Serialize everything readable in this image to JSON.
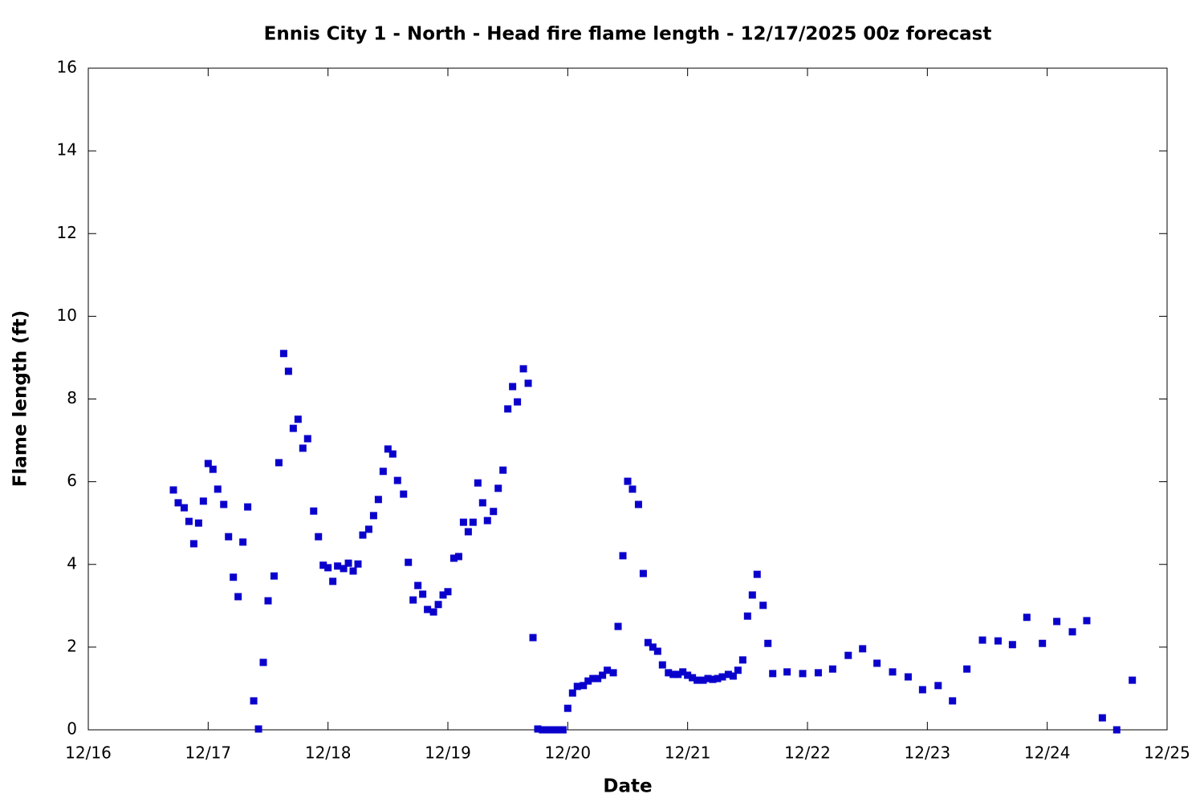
{
  "chart_data": {
    "type": "scatter",
    "title": "Ennis City 1 - North - Head fire flame length - 12/17/2025 00z forecast",
    "x_label": "Date",
    "y_label": "Flame length (ft)",
    "color": "#0a00cc",
    "xlim": [
      0,
      9
    ],
    "ylim": [
      0,
      16
    ],
    "xticks": [
      {
        "value": 0,
        "label": "12/16"
      },
      {
        "value": 1,
        "label": "12/17"
      },
      {
        "value": 2,
        "label": "12/18"
      },
      {
        "value": 3,
        "label": "12/19"
      },
      {
        "value": 4,
        "label": "12/20"
      },
      {
        "value": 5,
        "label": "12/21"
      },
      {
        "value": 6,
        "label": "12/22"
      },
      {
        "value": 7,
        "label": "12/23"
      },
      {
        "value": 8,
        "label": "12/24"
      },
      {
        "value": 9,
        "label": "12/25"
      }
    ],
    "yticks": [
      0,
      2,
      4,
      6,
      8,
      10,
      12,
      14,
      16
    ],
    "x": [
      0.71,
      0.75,
      0.8,
      0.84,
      0.88,
      0.92,
      0.96,
      1.0,
      1.04,
      1.08,
      1.13,
      1.17,
      1.21,
      1.25,
      1.29,
      1.33,
      1.38,
      1.42,
      1.46,
      1.5,
      1.55,
      1.59,
      1.63,
      1.67,
      1.71,
      1.75,
      1.79,
      1.83,
      1.88,
      1.92,
      1.96,
      2.0,
      2.04,
      2.08,
      2.13,
      2.17,
      2.21,
      2.25,
      2.29,
      2.34,
      2.38,
      2.42,
      2.46,
      2.5,
      2.54,
      2.58,
      2.63,
      2.67,
      2.71,
      2.75,
      2.79,
      2.83,
      2.88,
      2.92,
      2.96,
      3.0,
      3.05,
      3.09,
      3.13,
      3.17,
      3.21,
      3.25,
      3.29,
      3.33,
      3.38,
      3.42,
      3.46,
      3.5,
      3.54,
      3.58,
      3.63,
      3.67,
      3.71,
      3.75,
      3.79,
      3.84,
      3.88,
      3.92,
      3.96,
      4.0,
      4.04,
      4.08,
      4.13,
      4.17,
      4.21,
      4.25,
      4.29,
      4.33,
      4.38,
      4.42,
      4.46,
      4.5,
      4.54,
      4.59,
      4.63,
      4.67,
      4.71,
      4.75,
      4.79,
      4.84,
      4.88,
      4.92,
      4.96,
      5.0,
      5.04,
      5.08,
      5.13,
      5.17,
      5.21,
      5.25,
      5.29,
      5.34,
      5.38,
      5.42,
      5.46,
      5.5,
      5.54,
      5.58,
      5.63,
      5.67,
      5.71,
      5.83,
      5.96,
      6.09,
      6.21,
      6.34,
      6.46,
      6.58,
      6.71,
      6.84,
      6.96,
      7.09,
      7.21,
      7.33,
      7.46,
      7.59,
      7.71,
      7.83,
      7.96,
      8.08,
      8.21,
      8.33,
      8.46,
      8.58,
      8.71
    ],
    "values": [
      5.8,
      5.49,
      5.37,
      5.04,
      4.5,
      5.0,
      5.53,
      6.44,
      6.3,
      5.82,
      5.45,
      4.67,
      3.69,
      3.22,
      4.54,
      5.39,
      0.7,
      0.02,
      1.63,
      3.12,
      3.72,
      6.46,
      9.1,
      8.67,
      7.29,
      7.51,
      6.81,
      7.04,
      5.29,
      4.67,
      3.98,
      3.92,
      3.59,
      3.96,
      3.9,
      4.03,
      3.84,
      4.01,
      4.71,
      4.85,
      5.18,
      5.57,
      6.25,
      6.79,
      6.67,
      6.03,
      5.7,
      4.05,
      3.14,
      3.49,
      3.28,
      2.91,
      2.85,
      3.03,
      3.26,
      3.34,
      4.15,
      4.19,
      5.02,
      4.79,
      5.02,
      5.97,
      5.49,
      5.06,
      5.28,
      5.84,
      6.28,
      7.76,
      8.3,
      7.93,
      8.73,
      8.38,
      2.23,
      0.02,
      0,
      0,
      0,
      0,
      0,
      0.52,
      0.89,
      1.05,
      1.07,
      1.18,
      1.24,
      1.24,
      1.32,
      1.44,
      1.38,
      2.5,
      4.21,
      6.01,
      5.82,
      5.45,
      3.78,
      2.11,
      2.0,
      1.9,
      1.57,
      1.38,
      1.34,
      1.34,
      1.4,
      1.32,
      1.26,
      1.2,
      1.2,
      1.24,
      1.22,
      1.24,
      1.28,
      1.34,
      1.3,
      1.44,
      1.69,
      2.75,
      3.26,
      3.76,
      3.01,
      2.09,
      1.36,
      1.4,
      1.36,
      1.38,
      1.47,
      1.8,
      1.96,
      1.61,
      1.4,
      1.28,
      0.97,
      1.07,
      0.7,
      1.47,
      2.17,
      2.15,
      2.06,
      2.72,
      2.09,
      2.62,
      2.37,
      2.64,
      0.29,
      0,
      1.2
    ]
  }
}
